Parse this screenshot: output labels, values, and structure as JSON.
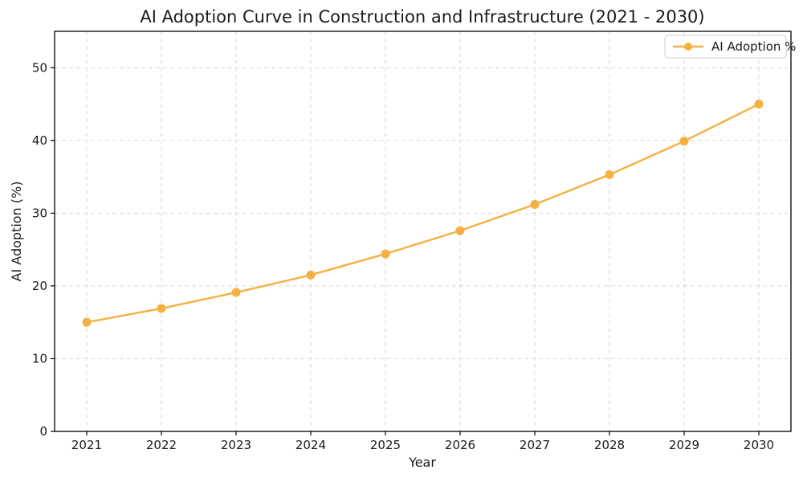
{
  "page": {
    "background": "#ffffff"
  },
  "chart_data": {
    "type": "line",
    "title": "AI Adoption Curve in Construction and Infrastructure (2021 - 2030)",
    "xlabel": "Year",
    "ylabel": "AI Adoption (%)",
    "x": [
      2021,
      2022,
      2023,
      2024,
      2025,
      2026,
      2027,
      2028,
      2029,
      2030
    ],
    "series": [
      {
        "name": "AI Adoption %",
        "values": [
          15.0,
          16.9,
          19.1,
          21.5,
          24.4,
          27.6,
          31.2,
          35.3,
          39.9,
          45.0
        ],
        "color": "#F5B042",
        "marker": "circle"
      }
    ],
    "xlim": [
      2020.57,
      2030.43
    ],
    "ylim": [
      0,
      55
    ],
    "yticks": [
      0,
      10,
      20,
      30,
      40,
      50
    ],
    "grid": true,
    "grid_color": "#d9d9d9",
    "grid_style": "dashed",
    "axis_color": "#000000",
    "text_color": "#1a1a1a",
    "legend": {
      "position": "upper-right"
    }
  }
}
